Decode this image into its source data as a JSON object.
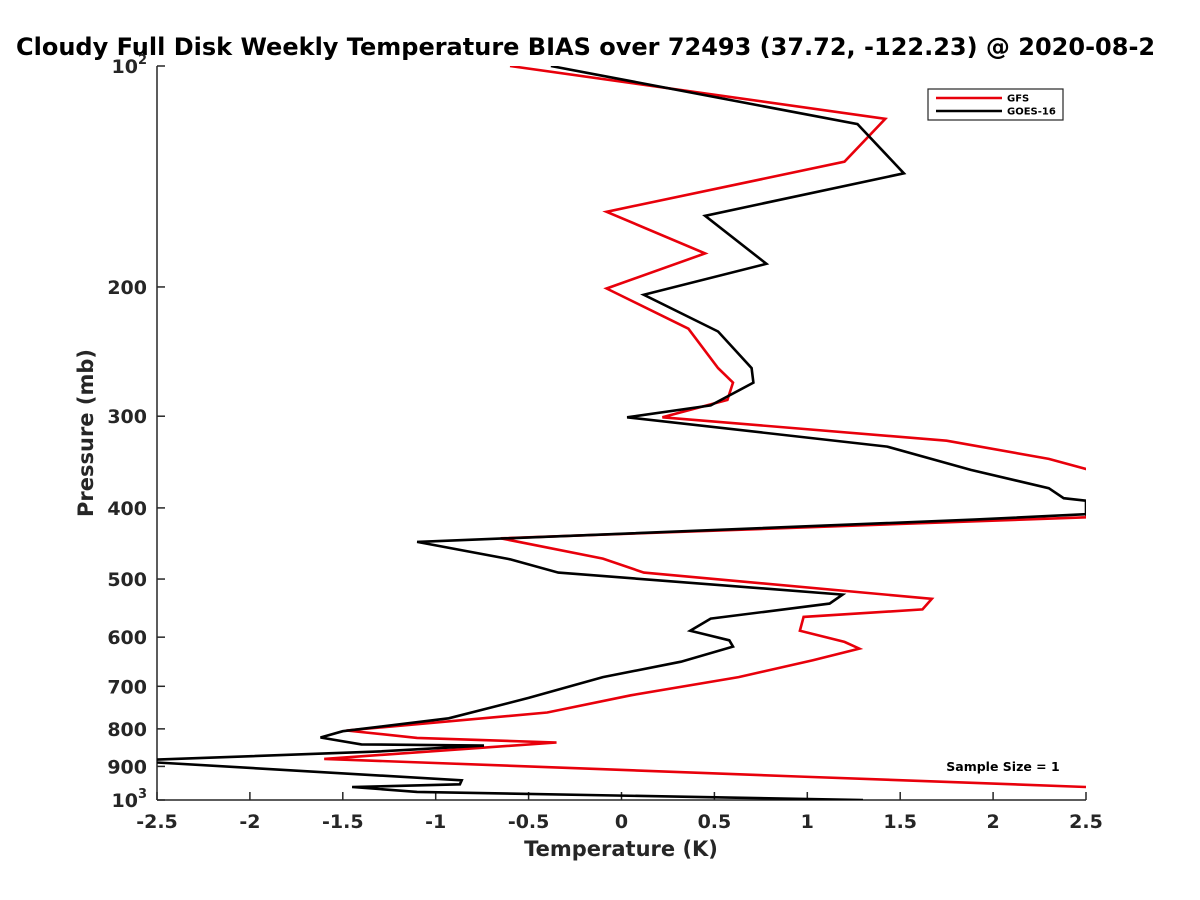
{
  "chart_data": {
    "type": "line",
    "title": "Cloudy Full Disk Weekly Temperature BIAS over 72493 (37.72, -122.23) @ 2020-08-2",
    "xlabel": "Temperature (K)",
    "ylabel": "Pressure (mb)",
    "xlim": [
      -2.5,
      2.5
    ],
    "ylim": [
      100,
      1000
    ],
    "y_scale": "log",
    "y_reversed": true,
    "grid": false,
    "legend_position": "top-right",
    "x_ticks": [
      "-2.5",
      "-2",
      "-1.5",
      "-1",
      "-0.5",
      "0",
      "0.5",
      "1",
      "1.5",
      "2",
      "2.5"
    ],
    "y_ticks": [
      {
        "value": 100,
        "label": "10",
        "sup": "2"
      },
      {
        "value": 200,
        "label": "200",
        "sup": ""
      },
      {
        "value": 300,
        "label": "300",
        "sup": ""
      },
      {
        "value": 400,
        "label": "400",
        "sup": ""
      },
      {
        "value": 500,
        "label": "500",
        "sup": ""
      },
      {
        "value": 600,
        "label": "600",
        "sup": ""
      },
      {
        "value": 700,
        "label": "700",
        "sup": ""
      },
      {
        "value": 800,
        "label": "800",
        "sup": ""
      },
      {
        "value": 900,
        "label": "900",
        "sup": ""
      },
      {
        "value": 1000,
        "label": "10",
        "sup": "3"
      }
    ],
    "annotation": "Sample Size = 1",
    "series": [
      {
        "name": "GFS",
        "color": "#e8000b",
        "points": [
          [
            -0.6,
            100
          ],
          [
            1.42,
            118
          ],
          [
            1.2,
            135
          ],
          [
            -0.08,
            158
          ],
          [
            0.45,
            180
          ],
          [
            -0.08,
            201
          ],
          [
            0.36,
            228
          ],
          [
            0.52,
            258
          ],
          [
            0.6,
            270
          ],
          [
            0.57,
            285
          ],
          [
            0.22,
            301
          ],
          [
            1.75,
            324
          ],
          [
            2.3,
            343
          ],
          [
            2.5,
            354
          ],
          [
            2.55,
            360
          ],
          [
            2.5,
            412
          ],
          [
            -0.65,
            440
          ],
          [
            -0.1,
            469
          ],
          [
            0.12,
            490
          ],
          [
            1.67,
            532
          ],
          [
            1.62,
            550
          ],
          [
            0.98,
            563
          ],
          [
            0.96,
            588
          ],
          [
            1.2,
            609
          ],
          [
            1.28,
            622
          ],
          [
            1.03,
            645
          ],
          [
            0.63,
            680
          ],
          [
            0.05,
            720
          ],
          [
            -0.4,
            760
          ],
          [
            -1.48,
            804
          ],
          [
            -1.1,
            823
          ],
          [
            -0.35,
            835
          ],
          [
            -1.6,
            879
          ],
          [
            -0.1,
            908
          ],
          [
            0.95,
            929
          ],
          [
            2.5,
            960
          ]
        ]
      },
      {
        "name": "GOES-16",
        "color": "#000000",
        "points": [
          [
            -0.38,
            100
          ],
          [
            1.27,
            120
          ],
          [
            1.52,
            140
          ],
          [
            0.45,
            160
          ],
          [
            0.78,
            186
          ],
          [
            0.12,
            205
          ],
          [
            0.52,
            230
          ],
          [
            0.7,
            258
          ],
          [
            0.71,
            270
          ],
          [
            0.48,
            290
          ],
          [
            0.03,
            301
          ],
          [
            1.43,
            330
          ],
          [
            1.88,
            355
          ],
          [
            2.3,
            376
          ],
          [
            2.38,
            388
          ],
          [
            2.5,
            391
          ],
          [
            2.5,
            408
          ],
          [
            1.9,
            415
          ],
          [
            -1.1,
            445
          ],
          [
            -0.6,
            470
          ],
          [
            -0.34,
            490
          ],
          [
            1.19,
            525
          ],
          [
            1.12,
            540
          ],
          [
            0.48,
            566
          ],
          [
            0.37,
            588
          ],
          [
            0.58,
            606
          ],
          [
            0.6,
            618
          ],
          [
            0.32,
            648
          ],
          [
            -0.1,
            680
          ],
          [
            -0.5,
            726
          ],
          [
            -0.93,
            774
          ],
          [
            -1.5,
            806
          ],
          [
            -1.62,
            822
          ],
          [
            -1.4,
            840
          ],
          [
            -0.74,
            843
          ],
          [
            -1.32,
            859
          ],
          [
            -2.5,
            881
          ],
          [
            -2.55,
            886
          ],
          [
            -2.5,
            889
          ],
          [
            -0.86,
            940
          ],
          [
            -0.87,
            952
          ],
          [
            -1.45,
            960
          ],
          [
            -1.1,
            975
          ],
          [
            1.3,
            1000
          ]
        ]
      }
    ]
  }
}
